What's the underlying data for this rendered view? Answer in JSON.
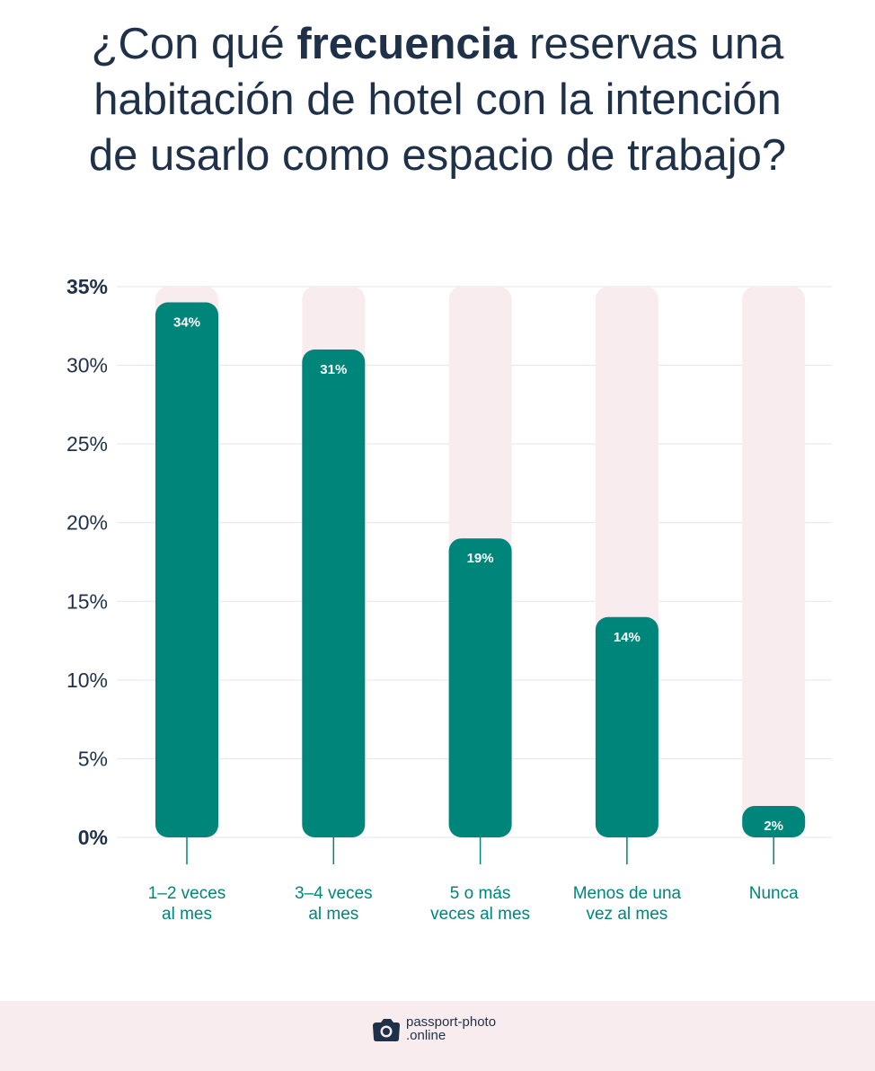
{
  "title": {
    "line1_pre": "¿Con qué ",
    "line1_bold": "frecuencia",
    "line1_post": " reservas una",
    "line2": "habitación de hotel con la intención",
    "line3": "de usarlo como espacio de trabajo?"
  },
  "chart_data": {
    "type": "bar",
    "categories": [
      [
        "1–2 veces",
        "al mes"
      ],
      [
        "3–4 veces",
        "al mes"
      ],
      [
        "5 o más",
        "veces al mes"
      ],
      [
        "Menos de una",
        "vez al mes"
      ],
      [
        "Nunca"
      ]
    ],
    "values": [
      34,
      31,
      19,
      14,
      2
    ],
    "value_labels": [
      "34%",
      "31%",
      "19%",
      "14%",
      "2%"
    ],
    "yticks": [
      "0%",
      "5%",
      "10%",
      "15%",
      "20%",
      "25%",
      "30%",
      "35%"
    ],
    "ylim": [
      0,
      35
    ],
    "grid": true,
    "colors": {
      "bar": "#00857a",
      "track": "#f8ecee",
      "text": "#1e3148",
      "category_text": "#00857a"
    }
  },
  "footer": {
    "brand_line1": "passport-photo",
    "brand_line2": ".online",
    "icon": "camera-icon"
  }
}
